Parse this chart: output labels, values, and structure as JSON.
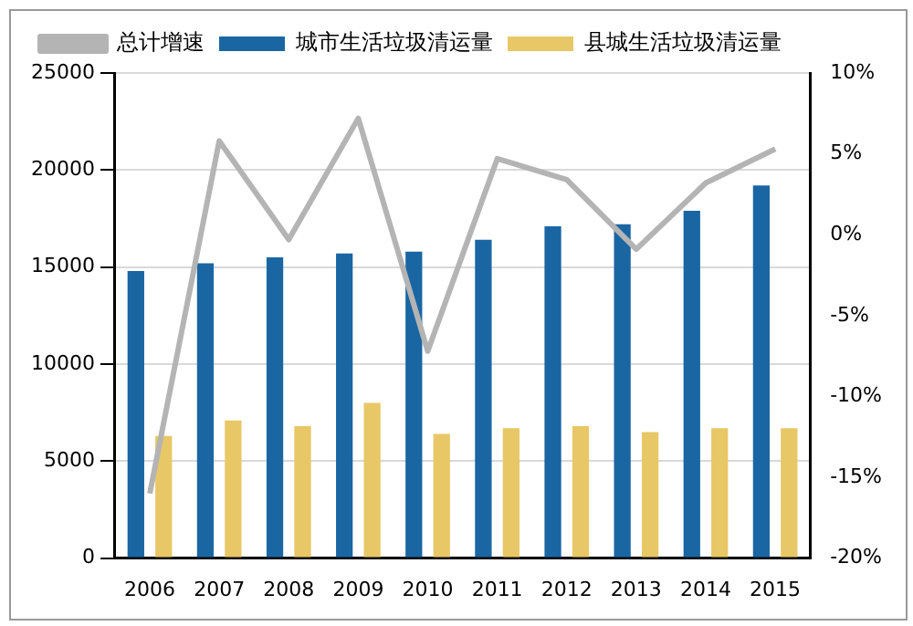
{
  "chart_data": {
    "type": "bar",
    "categories": [
      "2006",
      "2007",
      "2008",
      "2009",
      "2010",
      "2011",
      "2012",
      "2013",
      "2014",
      "2015"
    ],
    "series": [
      {
        "name": "城市生活垃圾清运量",
        "color": "#1a66a3",
        "values": [
          14800,
          15200,
          15500,
          15700,
          15800,
          16400,
          17100,
          17200,
          17900,
          19200
        ]
      },
      {
        "name": "县城生活垃圾清运量",
        "color": "#e8c766",
        "values": [
          6300,
          7100,
          6800,
          8000,
          6400,
          6700,
          6800,
          6500,
          6700,
          6700
        ]
      },
      {
        "name": "总计增速",
        "type": "line",
        "axis": "y2",
        "color": "#b4b4b4",
        "values": [
          -16,
          5.8,
          -0.3,
          7.2,
          -7.2,
          4.7,
          3.4,
          -0.9,
          3.2,
          5.3
        ]
      }
    ],
    "ylim": [
      0,
      25000
    ],
    "yticks": [
      0,
      5000,
      10000,
      15000,
      20000,
      25000
    ],
    "y2lim": [
      -20,
      10
    ],
    "y2ticks": [
      {
        "value": -20,
        "label": "-20%"
      },
      {
        "value": -15,
        "label": "-15%"
      },
      {
        "value": -10,
        "label": "-10%"
      },
      {
        "value": -5,
        "label": "-5%"
      },
      {
        "value": 0,
        "label": "0%"
      },
      {
        "value": 5,
        "label": "5%"
      },
      {
        "value": 10,
        "label": "10%"
      }
    ],
    "grid": "y",
    "legend": "top",
    "marker": "none"
  }
}
